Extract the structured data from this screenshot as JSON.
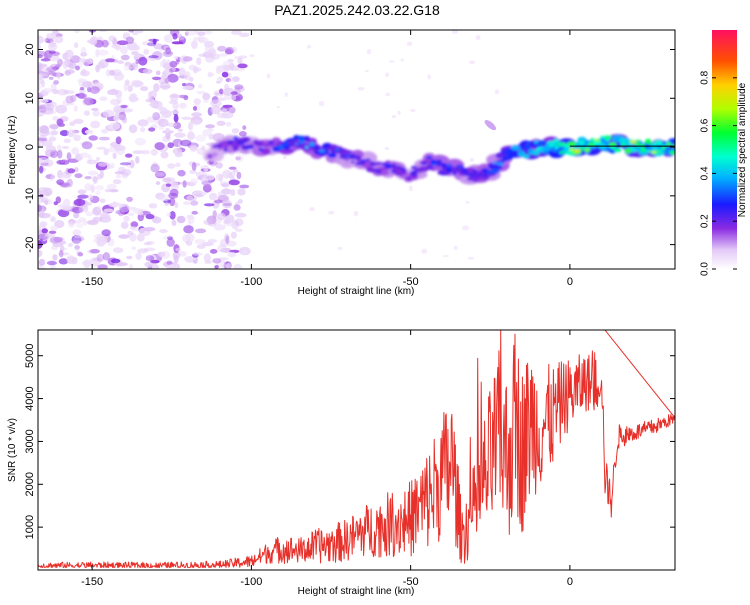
{
  "chart_data": [
    {
      "type": "heatmap",
      "title": "PAZ1.2025.242.03.22.G18",
      "xlabel": "Height of straight line (km)",
      "ylabel": "Frequency (Hz)",
      "xlim": [
        -167,
        33
      ],
      "ylim": [
        -25,
        24
      ],
      "xticks": [
        -150,
        -100,
        -50,
        0
      ],
      "yticks": [
        20,
        10,
        0,
        -10,
        -20
      ],
      "colorbar": {
        "label": "Normalized spectral amplitude",
        "range": [
          0,
          1
        ],
        "ticks": [
          "0.0",
          "0.2",
          "0.4",
          "0.6",
          "0.8"
        ],
        "tick_values": [
          0,
          0.2,
          0.4,
          0.6,
          0.8
        ]
      },
      "ridge": {
        "name": "spectral ridge",
        "x": [
          -113,
          -105,
          -95,
          -85,
          -80,
          -70,
          -60,
          -50,
          -45,
          -35,
          -28,
          -20,
          -10,
          0,
          10,
          20,
          33
        ],
        "y": [
          -1,
          1,
          0,
          1,
          0,
          -2,
          -4,
          -6,
          -3,
          -5,
          -6,
          -2,
          0,
          0,
          1,
          0,
          0
        ],
        "peak_amplitude": [
          0.2,
          0.3,
          0.3,
          0.5,
          0.4,
          0.35,
          0.3,
          0.3,
          0.35,
          0.4,
          0.35,
          0.45,
          0.6,
          0.85,
          0.9,
          0.85,
          0.75
        ]
      }
    },
    {
      "type": "line",
      "xlabel": "Height of straight line (km)",
      "ylabel": "SNR (10 * v/v)",
      "xlim": [
        -167,
        33
      ],
      "ylim": [
        0,
        5600
      ],
      "xticks": [
        -150,
        -100,
        -50,
        0
      ],
      "yticks": [
        1000,
        2000,
        3000,
        4000,
        5000
      ],
      "series": [
        {
          "name": "SNR",
          "color": "#e8302a",
          "x": [
            -167,
            -150,
            -130,
            -110,
            -100,
            -95,
            -90,
            -85,
            -80,
            -75,
            -70,
            -65,
            -60,
            -55,
            -50,
            -45,
            -40,
            -37,
            -34,
            -30,
            -25,
            -22,
            -20,
            -17,
            -15,
            -12,
            -10,
            -5,
            -2,
            2,
            5,
            8,
            10,
            11,
            13,
            15,
            20,
            25,
            30,
            33
          ],
          "mean": [
            100,
            110,
            100,
            120,
            200,
            400,
            500,
            450,
            550,
            600,
            700,
            900,
            1000,
            1100,
            1200,
            1600,
            2200,
            2500,
            800,
            1400,
            2500,
            3200,
            2600,
            3400,
            2800,
            3500,
            3300,
            3600,
            4000,
            4200,
            4400,
            4300,
            4600,
            2200,
            1600,
            3100,
            3200,
            3300,
            3450,
            3550
          ],
          "spread": [
            80,
            80,
            80,
            90,
            150,
            250,
            350,
            300,
            400,
            450,
            500,
            600,
            700,
            800,
            900,
            1200,
            1500,
            1700,
            700,
            1100,
            1800,
            2000,
            2100,
            2200,
            2000,
            1800,
            1500,
            1200,
            900,
            800,
            700,
            700,
            600,
            500,
            400,
            300,
            200,
            200,
            150,
            150
          ]
        }
      ],
      "peak": {
        "x": 11,
        "y": 5600
      }
    }
  ]
}
